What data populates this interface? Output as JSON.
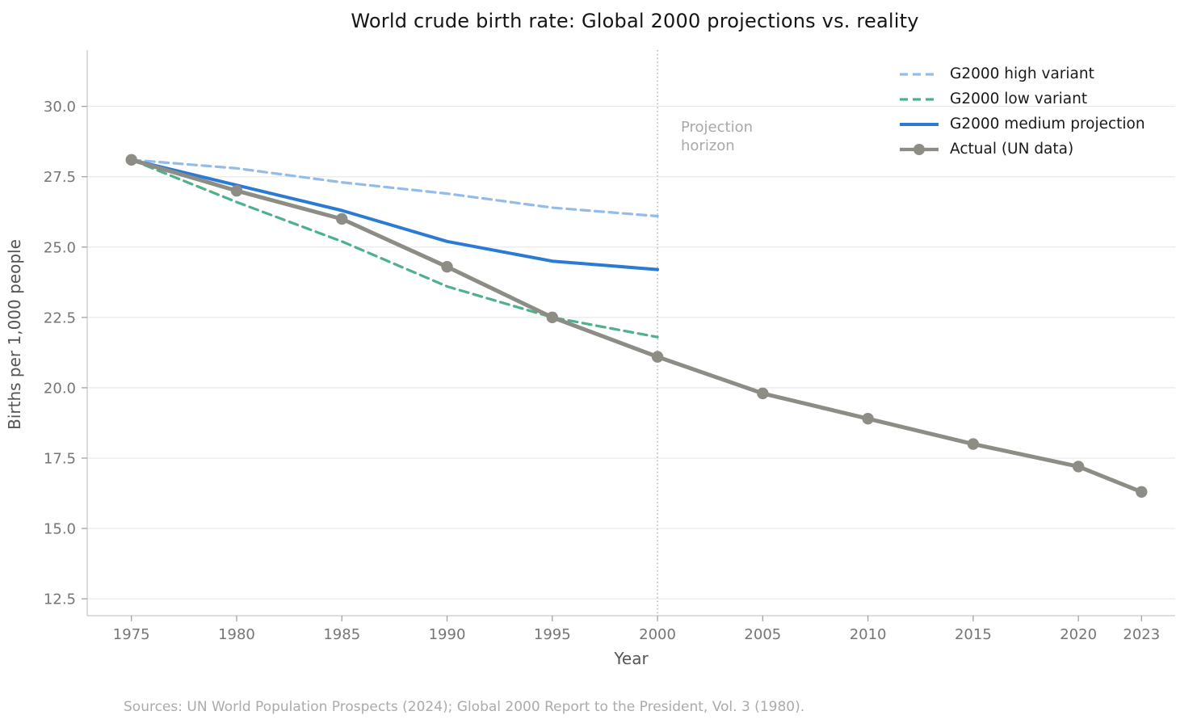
{
  "title": "World crude birth rate: Global 2000 projections vs. reality",
  "source_note": "Sources: UN World Population Prospects (2024); Global 2000 Report to the President, Vol. 3 (1980).",
  "chart_data": {
    "type": "line",
    "title": "World crude birth rate: Global 2000 projections vs. reality",
    "xlabel": "Year",
    "ylabel": "Births per 1,000 people",
    "grid": true,
    "legend_position": "upper right",
    "xlim": [
      1972.9,
      2024.6
    ],
    "ylim": [
      11.9,
      32.0
    ],
    "x_tick_values": [
      1975,
      1980,
      1985,
      1990,
      1995,
      2000,
      2005,
      2010,
      2015,
      2020,
      2023
    ],
    "x_tick_labels": [
      "1975",
      "1980",
      "1985",
      "1990",
      "1995",
      "2000",
      "2005",
      "2010",
      "2015",
      "2020",
      "2023"
    ],
    "y_tick_values": [
      12.5,
      15.0,
      17.5,
      20.0,
      22.5,
      25.0,
      27.5,
      30.0
    ],
    "y_tick_labels": [
      "12.5",
      "15.0",
      "17.5",
      "20.0",
      "22.5",
      "25.0",
      "27.5",
      "30.0"
    ],
    "vline": {
      "x": 2000,
      "style": "dotted",
      "color": "#b3b3b3",
      "label": "Projection\nhorizon",
      "label_color": "#a9a9a9"
    },
    "series": [
      {
        "name": "G2000 high variant",
        "color": "#93bce8",
        "line_style": "dashed",
        "line_width": 3.2,
        "markers": false,
        "x": [
          1975,
          1980,
          1985,
          1990,
          1995,
          2000
        ],
        "values": [
          28.1,
          27.8,
          27.3,
          26.9,
          26.4,
          26.1
        ]
      },
      {
        "name": "G2000 low variant",
        "color": "#4fb08c",
        "line_style": "dashed",
        "line_width": 3.2,
        "markers": false,
        "x": [
          1975,
          1980,
          1985,
          1990,
          1995,
          2000
        ],
        "values": [
          28.1,
          26.6,
          25.2,
          23.6,
          22.5,
          21.8
        ]
      },
      {
        "name": "G2000 medium projection",
        "color": "#2b7bd5",
        "line_style": "solid",
        "line_width": 4,
        "markers": false,
        "x": [
          1975,
          1980,
          1985,
          1990,
          1995,
          2000
        ],
        "values": [
          28.1,
          27.2,
          26.3,
          25.2,
          24.5,
          24.2
        ]
      },
      {
        "name": "Actual (UN data)",
        "color": "#8e8d85",
        "line_style": "solid",
        "line_width": 5,
        "markers": true,
        "marker_size": 7.2,
        "x": [
          1975,
          1980,
          1985,
          1990,
          1995,
          2000,
          2005,
          2010,
          2015,
          2020,
          2023
        ],
        "values": [
          28.1,
          27.0,
          26.0,
          24.3,
          22.5,
          21.1,
          19.8,
          18.9,
          18.0,
          17.2,
          16.3
        ]
      }
    ],
    "style": {
      "grid_color": "#eaeaea",
      "spine_color": "#c9c9c9",
      "tick_color": "#a3a3a3",
      "tick_label_color": "#767676",
      "axis_label_color": "#555555",
      "title_color": "#151515"
    }
  }
}
